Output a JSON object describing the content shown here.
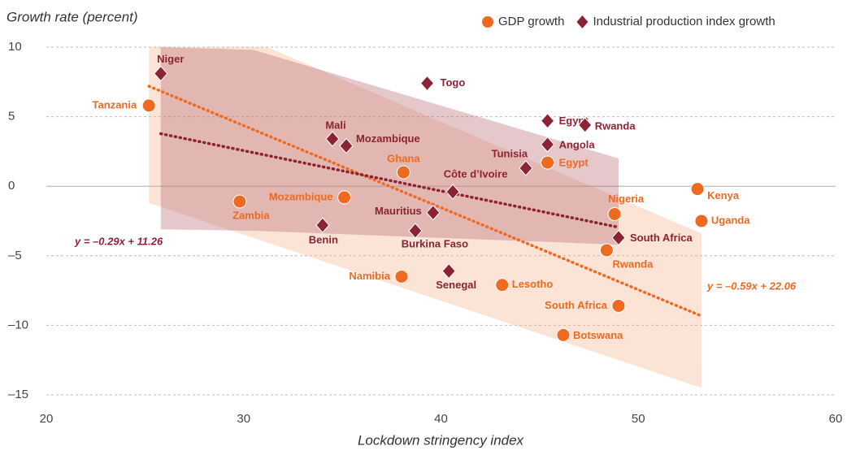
{
  "chart_data": {
    "type": "scatter",
    "title": "Growth rate (percent)",
    "x_label": "Lockdown stringency index",
    "xlim": [
      20,
      60
    ],
    "xticks": [
      20,
      30,
      40,
      50,
      60
    ],
    "ylim": [
      -15,
      10
    ],
    "yticks": [
      {
        "value": 10,
        "label": "10"
      },
      5,
      0,
      {
        "value": -5,
        "label": "–5"
      },
      {
        "value": -10,
        "label": "–10"
      },
      {
        "value": -15,
        "label": "–15"
      }
    ],
    "grid": true,
    "legend": "top-right",
    "series": [
      {
        "name": "GDP growth",
        "color": "#ee6a21",
        "marker": "circle",
        "labels": [
          "Tanzania",
          "Zambia",
          "Mozambique",
          "Ghana",
          "Egypt",
          "Nigeria",
          "Kenya",
          "Uganda",
          "Rwanda",
          "Namibia",
          "Lesotho",
          "South Africa",
          "Botswana"
        ],
        "x": [
          25.2,
          29.8,
          35.1,
          38.1,
          45.4,
          48.8,
          53.0,
          53.2,
          48.4,
          38.0,
          43.1,
          49.0,
          46.2
        ],
        "values": [
          5.8,
          -1.1,
          -0.8,
          1.0,
          1.7,
          -2.0,
          -0.2,
          -2.5,
          -4.6,
          -6.5,
          -7.1,
          -8.6,
          -10.7
        ],
        "trend": {
          "label": "y = –0.59x + 22.06",
          "slope": -0.59,
          "intercept": 22.06,
          "x": [
            25.2,
            53.2
          ]
        },
        "band": {
          "color": "#f4b08a",
          "x": [
            25.2,
            31.2,
            53.2
          ],
          "upper": [
            10,
            10,
            -3.4
          ],
          "lower": [
            -1.2,
            -4.05,
            -14.5
          ]
        }
      },
      {
        "name": "Industrial production index growth",
        "color": "#8b2335",
        "marker": "diamond",
        "labels": [
          "Niger",
          "Togo",
          "Egypt",
          "Rwanda",
          "Angola",
          "Mali",
          "Mozambique",
          "Tunisia",
          "Côte d’Ivoire",
          "Mauritius",
          "Benin",
          "Burkina Faso",
          "South Africa",
          "Senegal"
        ],
        "x": [
          25.8,
          39.3,
          45.4,
          47.3,
          45.4,
          34.5,
          35.2,
          44.3,
          40.6,
          39.6,
          34.0,
          38.7,
          49.0,
          40.4
        ],
        "values": [
          8.1,
          7.4,
          4.7,
          4.4,
          3.0,
          3.4,
          2.9,
          1.3,
          -0.4,
          -1.9,
          -2.8,
          -3.2,
          -3.7,
          -6.1
        ],
        "trend": {
          "label": "y = –0.29x + 11.26",
          "slope": -0.29,
          "intercept": 11.26,
          "x": [
            25.8,
            49.0
          ]
        },
        "band": {
          "color": "#b5606e",
          "x": [
            25.8,
            30.5,
            49.0
          ],
          "upper": [
            10,
            9.8,
            2.0
          ],
          "lower": [
            -3.1,
            -3.2,
            -4.2
          ]
        }
      }
    ]
  }
}
